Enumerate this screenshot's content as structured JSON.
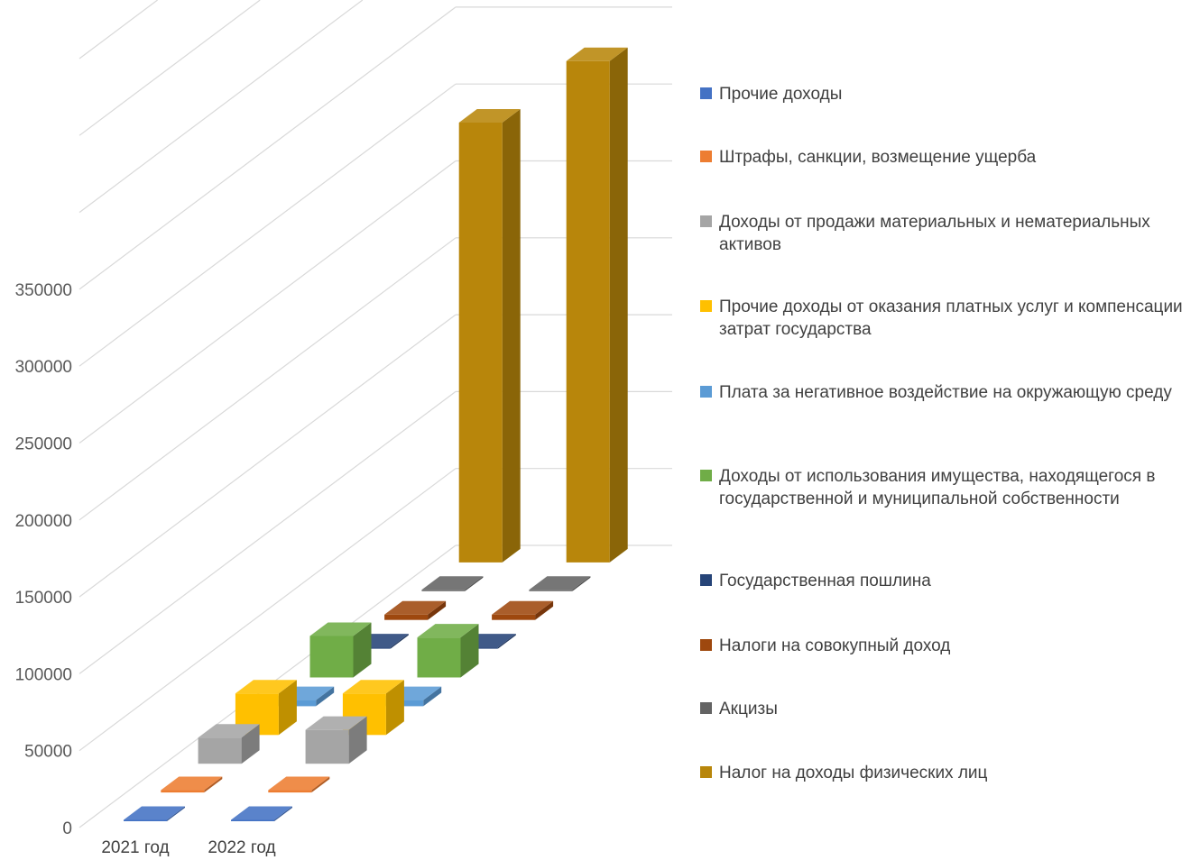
{
  "chart_data": {
    "type": "bar",
    "subtype": "3d-column",
    "categories": [
      "2021 год",
      "2022 год"
    ],
    "series": [
      {
        "name": "Прочие доходы",
        "color": "#4472C4",
        "values": [
          100,
          100
        ]
      },
      {
        "name": "Штрафы, санкции, возмещение ущерба",
        "color": "#ED7D31",
        "values": [
          1500,
          1500
        ]
      },
      {
        "name": "Доходы от продажи материальных и нематериальных активов",
        "color": "#A5A5A5",
        "values": [
          17000,
          22000
        ]
      },
      {
        "name": "Прочие доходы от оказания платных услуг и компенсации затрат государства",
        "color": "#FFC000",
        "values": [
          27000,
          27000
        ]
      },
      {
        "name": "Плата за негативное воздействие на окружающую среду",
        "color": "#5B9BD5",
        "values": [
          4000,
          4000
        ]
      },
      {
        "name": "Доходы от использования имущества, находящегося в государственной и муниципальной собственности",
        "color": "#70AD47",
        "values": [
          27000,
          26000
        ]
      },
      {
        "name": "Государственная пошлина",
        "color": "#264478",
        "values": [
          800,
          800
        ]
      },
      {
        "name": "Налоги на совокупный доход",
        "color": "#9E480E",
        "values": [
          3500,
          3500
        ]
      },
      {
        "name": "Акцизы",
        "color": "#636363",
        "values": [
          500,
          500
        ]
      },
      {
        "name": "Налог на доходы физических лиц",
        "color": "#B8860B",
        "values": [
          286000,
          326000
        ]
      }
    ],
    "y_ticks": [
      "0",
      "50000",
      "100000",
      "150000",
      "200000",
      "250000",
      "300000",
      "350000"
    ],
    "ylim": [
      0,
      380000
    ],
    "title": "",
    "xlabel": "",
    "ylabel": "",
    "grid": true,
    "legend_position": "right"
  }
}
